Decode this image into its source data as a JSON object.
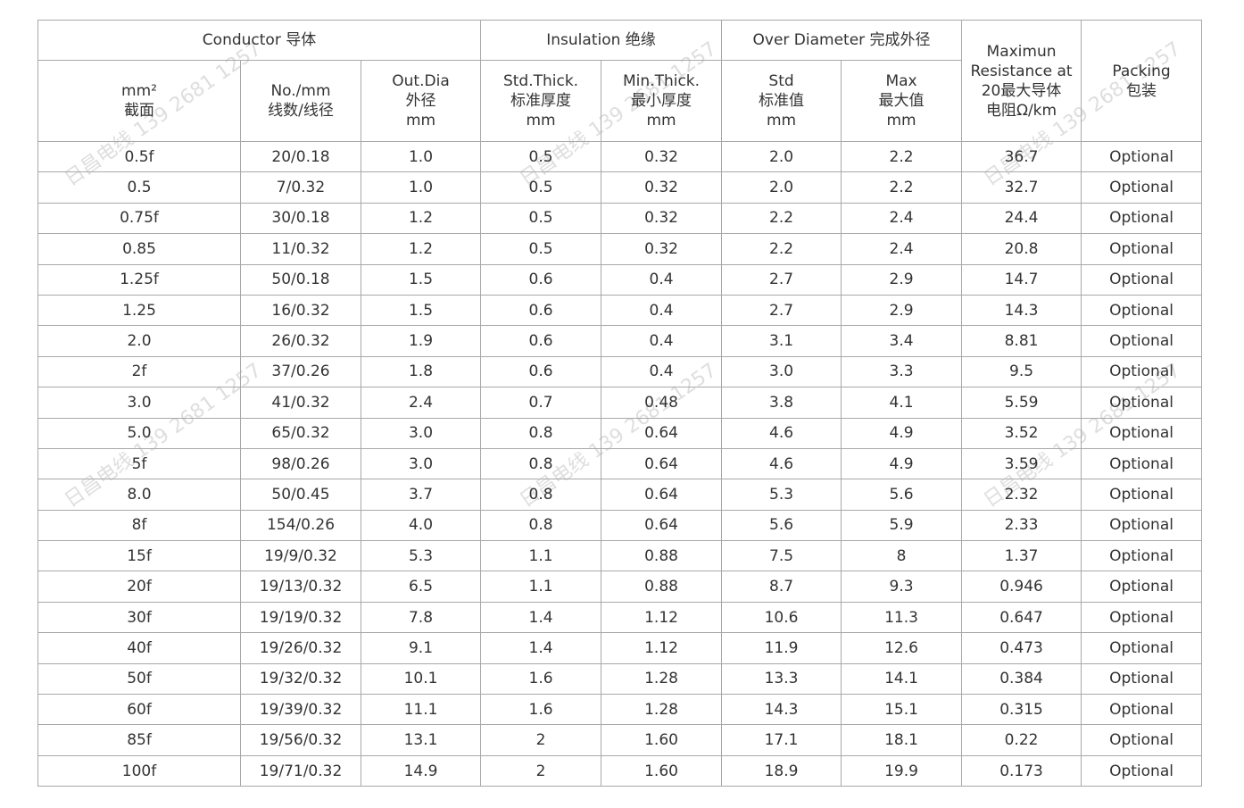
{
  "watermark": "日昌电线 139 2681 1257",
  "header": {
    "groups": {
      "conductor": "Conductor 导体",
      "insulation": "Insulation 绝缘",
      "over_diameter": "Over Diameter 完成外径",
      "resistance": [
        "Maximun",
        "Resistance at",
        "20最大导体",
        "电阻Ω/km"
      ],
      "packing": [
        "Packing",
        "包装"
      ]
    },
    "columns": {
      "area": [
        "mm²",
        "截面"
      ],
      "strands": [
        "No./mm",
        "线数/线径"
      ],
      "out_dia": [
        "Out.Dia",
        "外径",
        "mm"
      ],
      "std_thick": [
        "Std.Thick.",
        "标准厚度",
        "mm"
      ],
      "min_thick": [
        "Min.Thick.",
        "最小厚度",
        "mm"
      ],
      "std_od": [
        "Std",
        "标准值",
        "mm"
      ],
      "max_od": [
        "Max",
        "最大值",
        "mm"
      ]
    }
  },
  "rows": [
    [
      "0.5f",
      "20/0.18",
      "1.0",
      "0.5",
      "0.32",
      "2.0",
      "2.2",
      "36.7",
      "Optional"
    ],
    [
      "0.5",
      "7/0.32",
      "1.0",
      "0.5",
      "0.32",
      "2.0",
      "2.2",
      "32.7",
      "Optional"
    ],
    [
      "0.75f",
      "30/0.18",
      "1.2",
      "0.5",
      "0.32",
      "2.2",
      "2.4",
      "24.4",
      "Optional"
    ],
    [
      "0.85",
      "11/0.32",
      "1.2",
      "0.5",
      "0.32",
      "2.2",
      "2.4",
      "20.8",
      "Optional"
    ],
    [
      "1.25f",
      "50/0.18",
      "1.5",
      "0.6",
      "0.4",
      "2.7",
      "2.9",
      "14.7",
      "Optional"
    ],
    [
      "1.25",
      "16/0.32",
      "1.5",
      "0.6",
      "0.4",
      "2.7",
      "2.9",
      "14.3",
      "Optional"
    ],
    [
      "2.0",
      "26/0.32",
      "1.9",
      "0.6",
      "0.4",
      "3.1",
      "3.4",
      "8.81",
      "Optional"
    ],
    [
      "2f",
      "37/0.26",
      "1.8",
      "0.6",
      "0.4",
      "3.0",
      "3.3",
      "9.5",
      "Optional"
    ],
    [
      "3.0",
      "41/0.32",
      "2.4",
      "0.7",
      "0.48",
      "3.8",
      "4.1",
      "5.59",
      "Optional"
    ],
    [
      "5.0",
      "65/0.32",
      "3.0",
      "0.8",
      "0.64",
      "4.6",
      "4.9",
      "3.52",
      "Optional"
    ],
    [
      "5f",
      "98/0.26",
      "3.0",
      "0.8",
      "0.64",
      "4.6",
      "4.9",
      "3.59",
      "Optional"
    ],
    [
      "8.0",
      "50/0.45",
      "3.7",
      "0.8",
      "0.64",
      "5.3",
      "5.6",
      "2.32",
      "Optional"
    ],
    [
      "8f",
      "154/0.26",
      "4.0",
      "0.8",
      "0.64",
      "5.6",
      "5.9",
      "2.33",
      "Optional"
    ],
    [
      "15f",
      "19/9/0.32",
      "5.3",
      "1.1",
      "0.88",
      "7.5",
      "8",
      "1.37",
      "Optional"
    ],
    [
      "20f",
      "19/13/0.32",
      "6.5",
      "1.1",
      "0.88",
      "8.7",
      "9.3",
      "0.946",
      "Optional"
    ],
    [
      "30f",
      "19/19/0.32",
      "7.8",
      "1.4",
      "1.12",
      "10.6",
      "11.3",
      "0.647",
      "Optional"
    ],
    [
      "40f",
      "19/26/0.32",
      "9.1",
      "1.4",
      "1.12",
      "11.9",
      "12.6",
      "0.473",
      "Optional"
    ],
    [
      "50f",
      "19/32/0.32",
      "10.1",
      "1.6",
      "1.28",
      "13.3",
      "14.1",
      "0.384",
      "Optional"
    ],
    [
      "60f",
      "19/39/0.32",
      "11.1",
      "1.6",
      "1.28",
      "14.3",
      "15.1",
      "0.315",
      "Optional"
    ],
    [
      "85f",
      "19/56/0.32",
      "13.1",
      "2",
      "1.60",
      "17.1",
      "18.1",
      "0.22",
      "Optional"
    ],
    [
      "100f",
      "19/71/0.32",
      "14.9",
      "2",
      "1.60",
      "18.9",
      "19.9",
      "0.173",
      "Optional"
    ]
  ]
}
